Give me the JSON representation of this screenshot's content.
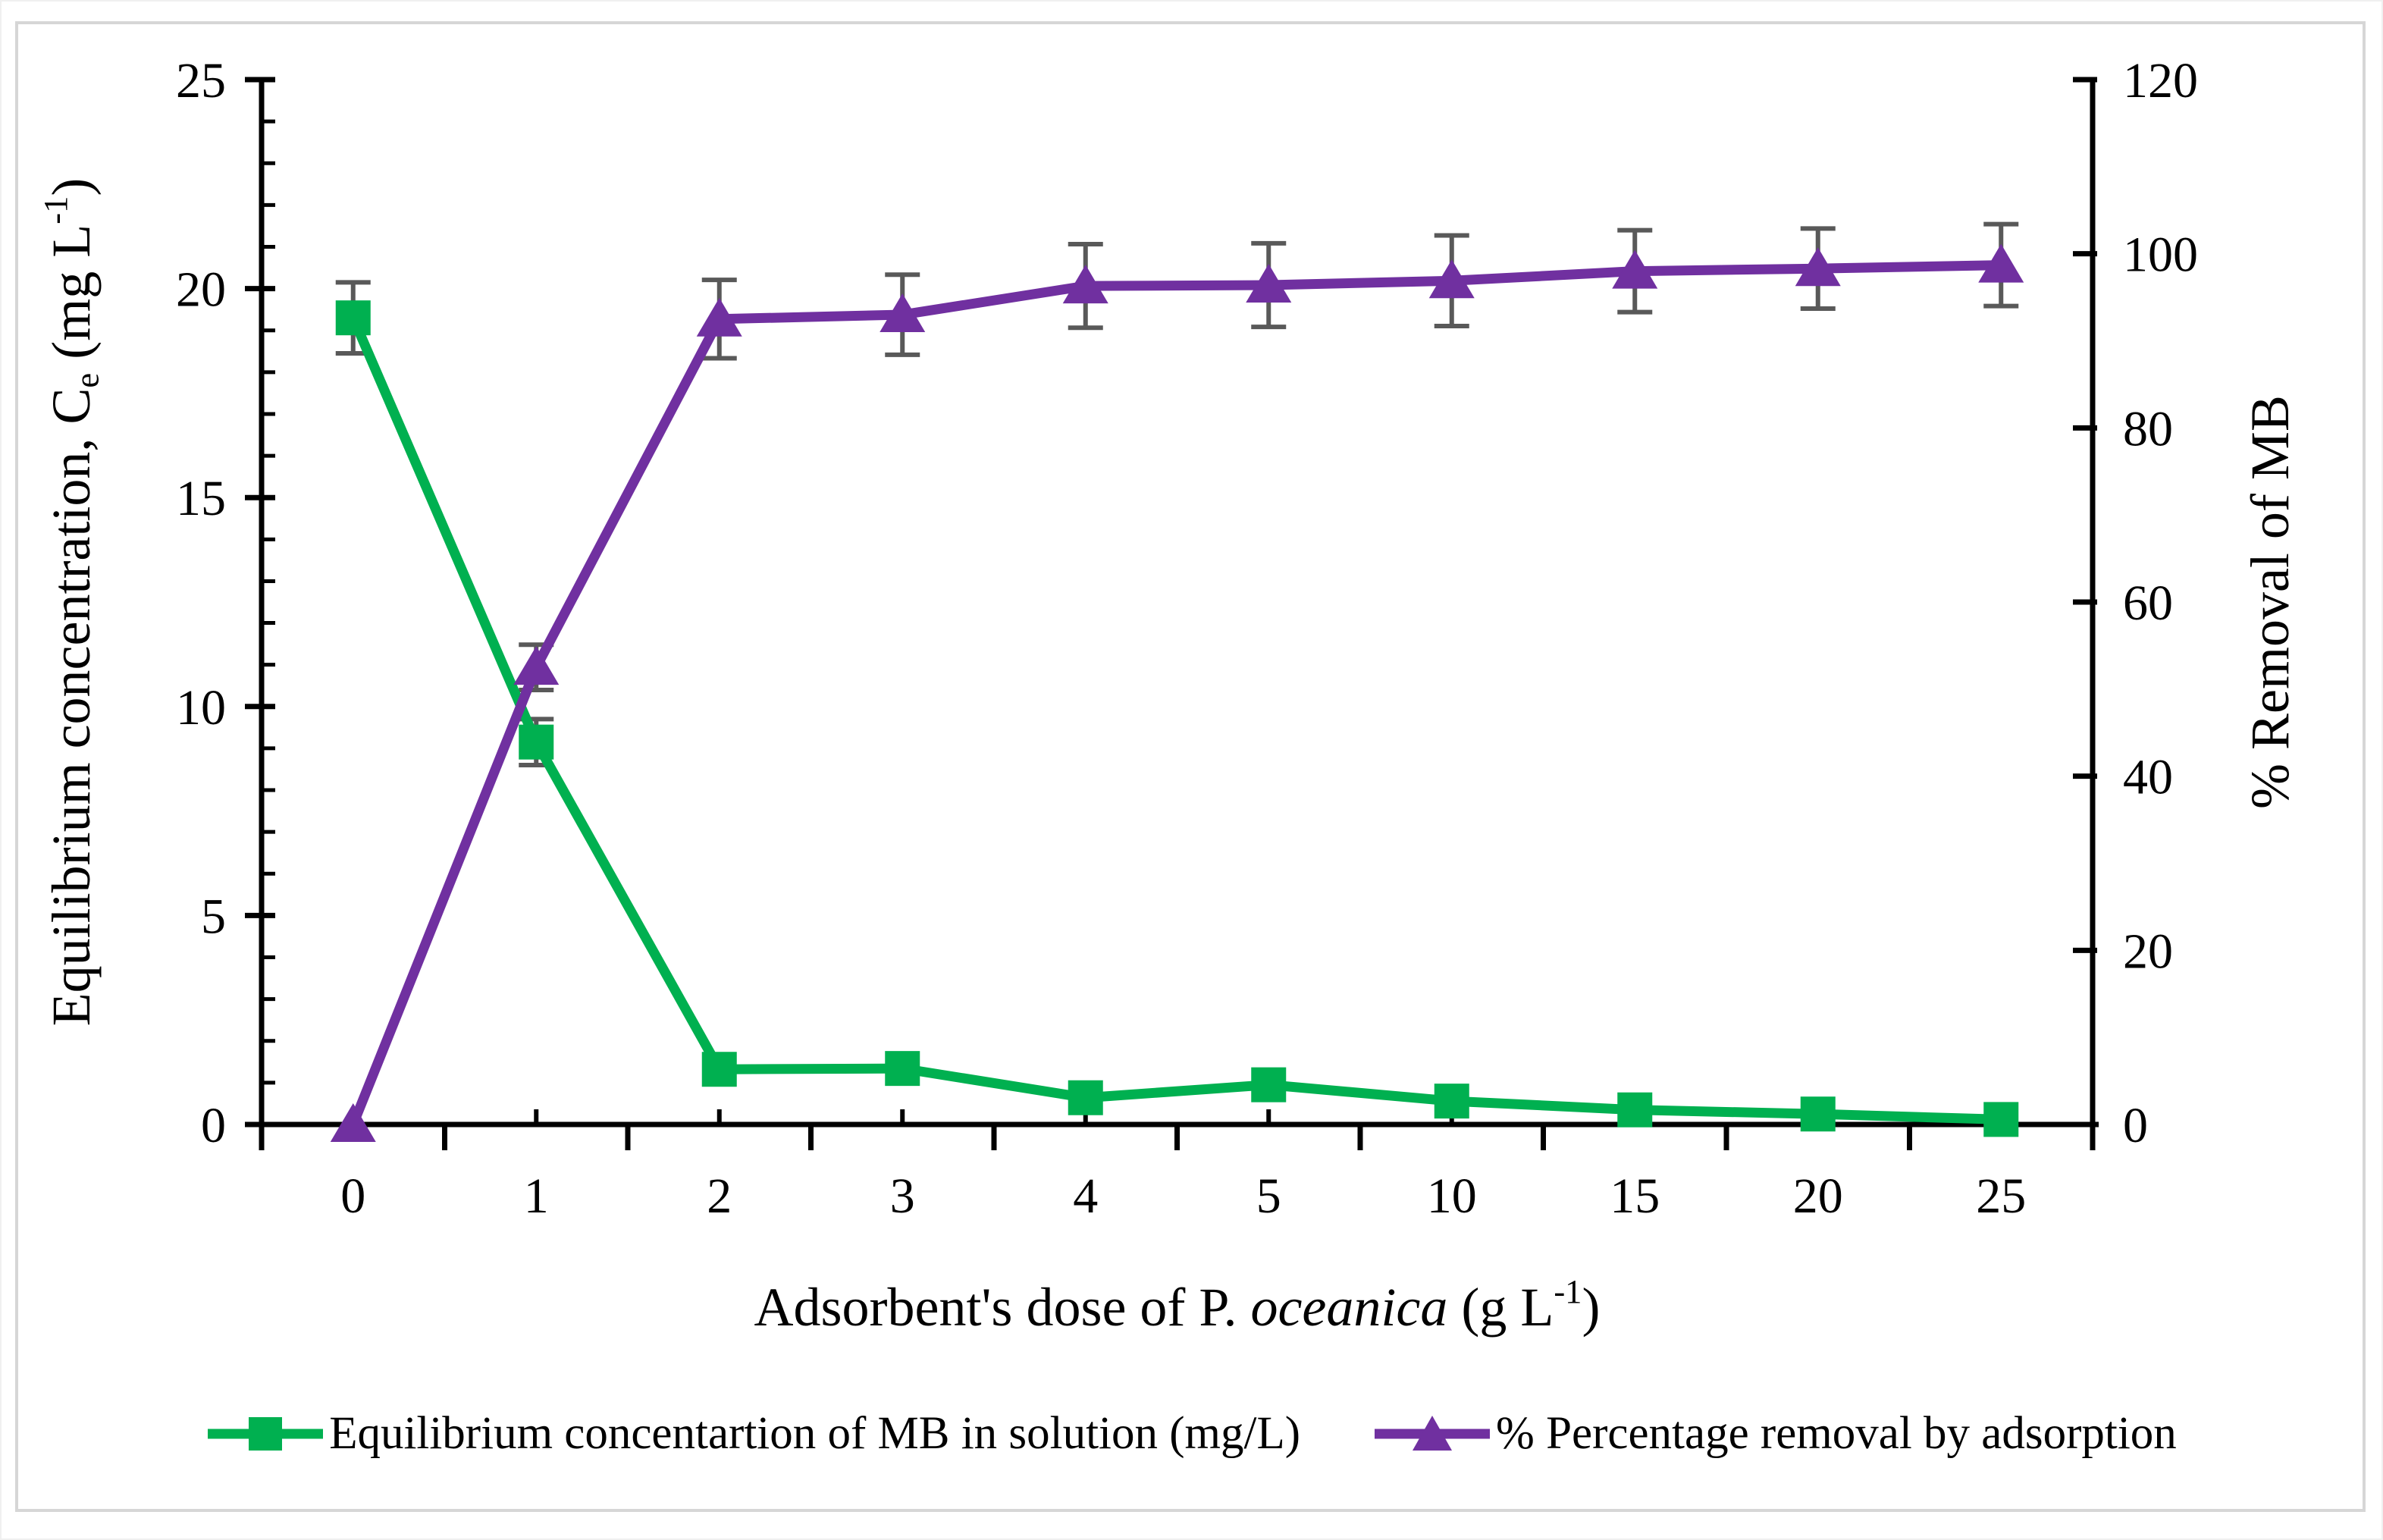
{
  "figure": {
    "background": "#ffffff",
    "border_color": "#d6d6d6",
    "text_color": "#000000",
    "error_bar_color": "#595959"
  },
  "chart_data": {
    "type": "line",
    "categories": [
      "0",
      "1",
      "2",
      "3",
      "4",
      "5",
      "10",
      "15",
      "20",
      "25"
    ],
    "x_axis": {
      "title_plain": "Adsorbent's dose of P. oceanica (g L-1)",
      "title_parts": [
        {
          "text": "Adsorbent's dose of P. "
        },
        {
          "text": "oceanica",
          "style": "italic"
        },
        {
          "text": "  (g L"
        },
        {
          "text": "-1",
          "style": "sup"
        },
        {
          "text": ")"
        }
      ]
    },
    "y_left": {
      "title_plain": "Equilibrium concentration, Ce (mg L-1)",
      "title_parts": [
        {
          "text": "Equilibrium concentration, C"
        },
        {
          "text": "e",
          "style": "sub"
        },
        {
          "text": " (mg L"
        },
        {
          "text": "-1",
          "style": "sup"
        },
        {
          "text": ")"
        }
      ],
      "min": 0,
      "max": 25,
      "major_tick_values": [
        0,
        5,
        10,
        15,
        20,
        25
      ],
      "major_tick_labels": [
        "0",
        "5",
        "10",
        "15",
        "20",
        "25"
      ],
      "minor_tick_step": 1
    },
    "y_right": {
      "title_plain": "% Removal of MB",
      "title_parts": [
        {
          "text": "% Removal of MB"
        }
      ],
      "min": 0,
      "max": 120,
      "major_tick_values": [
        0,
        20,
        40,
        60,
        80,
        100,
        120
      ],
      "major_tick_labels": [
        "0",
        "20",
        "40",
        "60",
        "80",
        "100",
        "120"
      ]
    },
    "series": [
      {
        "name": "Equilibrium concentartion of MB in solution (mg/L)",
        "axis": "left",
        "color": "#00b050",
        "marker": "square",
        "values": [
          19.3,
          9.15,
          1.32,
          1.34,
          0.64,
          0.95,
          0.56,
          0.35,
          0.25,
          0.12
        ],
        "errors": [
          0.85,
          0.55,
          0,
          0,
          0,
          0,
          0,
          0,
          0,
          0
        ]
      },
      {
        "name": "% Percentage removal by adsorption",
        "axis": "right",
        "color": "#7030a0",
        "marker": "triangle-up",
        "values": [
          0,
          52.5,
          92.5,
          93,
          96.3,
          96.4,
          96.9,
          98,
          98.3,
          98.7
        ],
        "errors": [
          0,
          2.6,
          4.5,
          4.6,
          4.8,
          4.8,
          5.2,
          4.7,
          4.6,
          4.7
        ]
      }
    ],
    "legend_position": "bottom",
    "grid": "off"
  }
}
